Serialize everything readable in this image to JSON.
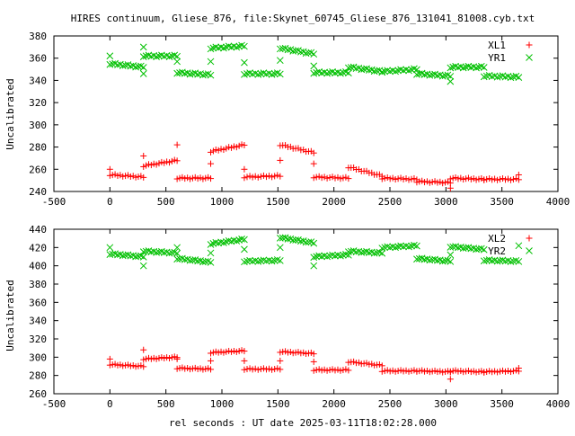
{
  "chart_data": {
    "title": "HIRES continuum, Gliese_876, file:Skynet_60745_Gliese_876_131041_81008.cyb.txt",
    "xlabel": "rel seconds : UT date 2025-03-11T18:02:28.000",
    "colors": {
      "red": "#ff0000",
      "green": "#00c000"
    },
    "panels": [
      {
        "type": "scatter",
        "ylabel": "Uncalibrated",
        "xlim": [
          -500,
          4000
        ],
        "ylim": [
          240,
          380
        ],
        "xticks": [
          "-500",
          "0",
          "500",
          "1000",
          "1500",
          "2000",
          "2500",
          "3000",
          "3500",
          "4000"
        ],
        "yticks": [
          "240",
          "260",
          "280",
          "300",
          "320",
          "340",
          "360",
          "380"
        ],
        "legend_position": "top-right",
        "series": [
          {
            "name": "XL1",
            "marker": "plus",
            "color": "#ff0000",
            "segments": [
              {
                "x": [
                  0,
                  300
                ],
                "y": [
                  255,
                  253
                ]
              },
              {
                "x": [
                  300,
                  600
                ],
                "y": [
                  263,
                  268
                ]
              },
              {
                "x": [
                  600,
                  900
                ],
                "y": [
                  252,
                  252
                ]
              },
              {
                "x": [
                  900,
                  1200
                ],
                "y": [
                  276,
                  282
                ]
              },
              {
                "x": [
                  1200,
                  1520
                ],
                "y": [
                  253,
                  254
                ]
              },
              {
                "x": [
                  1520,
                  1820
                ],
                "y": [
                  282,
                  275
                ]
              },
              {
                "x": [
                  1820,
                  2130
                ],
                "y": [
                  253,
                  252
                ]
              },
              {
                "x": [
                  2130,
                  2430
                ],
                "y": [
                  262,
                  254
                ]
              },
              {
                "x": [
                  2430,
                  2740
                ],
                "y": [
                  252,
                  251
                ]
              },
              {
                "x": [
                  2740,
                  3040
                ],
                "y": [
                  249,
                  248
                ]
              },
              {
                "x": [
                  3040,
                  3340
                ],
                "y": [
                  252,
                  251
                ]
              },
              {
                "x": [
                  3340,
                  3650
                ],
                "y": [
                  251,
                  251
                ]
              }
            ],
            "outliers": [
              {
                "x": 0,
                "y": 260
              },
              {
                "x": 300,
                "y": 272
              },
              {
                "x": 600,
                "y": 282
              },
              {
                "x": 900,
                "y": 265
              },
              {
                "x": 1200,
                "y": 260
              },
              {
                "x": 1520,
                "y": 268
              },
              {
                "x": 1820,
                "y": 265
              },
              {
                "x": 3040,
                "y": 243
              },
              {
                "x": 3650,
                "y": 255
              }
            ]
          },
          {
            "name": "YR1",
            "marker": "cross",
            "color": "#00c000",
            "segments": [
              {
                "x": [
                  0,
                  300
                ],
                "y": [
                  355,
                  352
                ]
              },
              {
                "x": [
                  300,
                  600
                ],
                "y": [
                  362,
                  362
                ]
              },
              {
                "x": [
                  600,
                  900
                ],
                "y": [
                  347,
                  345
                ]
              },
              {
                "x": [
                  900,
                  1200
                ],
                "y": [
                  369,
                  371
                ]
              },
              {
                "x": [
                  1200,
                  1520
                ],
                "y": [
                  346,
                  346
                ]
              },
              {
                "x": [
                  1520,
                  1820
                ],
                "y": [
                  369,
                  364
                ]
              },
              {
                "x": [
                  1820,
                  2130
                ],
                "y": [
                  347,
                  347
                ]
              },
              {
                "x": [
                  2130,
                  2430
                ],
                "y": [
                  352,
                  348
                ]
              },
              {
                "x": [
                  2430,
                  2740
                ],
                "y": [
                  348,
                  350
                ]
              },
              {
                "x": [
                  2740,
                  3040
                ],
                "y": [
                  346,
                  344
                ]
              },
              {
                "x": [
                  3040,
                  3340
                ],
                "y": [
                  352,
                  352
                ]
              },
              {
                "x": [
                  3340,
                  3650
                ],
                "y": [
                  344,
                  343
                ]
              }
            ],
            "outliers": [
              {
                "x": 0,
                "y": 362
              },
              {
                "x": 300,
                "y": 346
              },
              {
                "x": 300,
                "y": 370
              },
              {
                "x": 600,
                "y": 357
              },
              {
                "x": 900,
                "y": 357
              },
              {
                "x": 1200,
                "y": 356
              },
              {
                "x": 1520,
                "y": 358
              },
              {
                "x": 1820,
                "y": 353
              },
              {
                "x": 3040,
                "y": 339
              }
            ]
          }
        ]
      },
      {
        "type": "scatter",
        "ylabel": "Uncalibrated",
        "xlim": [
          -500,
          4000
        ],
        "ylim": [
          260,
          440
        ],
        "xticks": [
          "-500",
          "0",
          "500",
          "1000",
          "1500",
          "2000",
          "2500",
          "3000",
          "3500",
          "4000"
        ],
        "yticks": [
          "260",
          "280",
          "300",
          "320",
          "340",
          "360",
          "380",
          "400",
          "420",
          "440"
        ],
        "legend_position": "top-right",
        "series": [
          {
            "name": "XL2",
            "marker": "plus",
            "color": "#ff0000",
            "segments": [
              {
                "x": [
                  0,
                  300
                ],
                "y": [
                  292,
                  290
                ]
              },
              {
                "x": [
                  300,
                  600
                ],
                "y": [
                  298,
                  300
                ]
              },
              {
                "x": [
                  600,
                  900
                ],
                "y": [
                  288,
                  287
                ]
              },
              {
                "x": [
                  900,
                  1200
                ],
                "y": [
                  305,
                  307
                ]
              },
              {
                "x": [
                  1200,
                  1520
                ],
                "y": [
                  287,
                  287
                ]
              },
              {
                "x": [
                  1520,
                  1820
                ],
                "y": [
                  306,
                  304
                ]
              },
              {
                "x": [
                  1820,
                  2130
                ],
                "y": [
                  286,
                  286
                ]
              },
              {
                "x": [
                  2130,
                  2430
                ],
                "y": [
                  295,
                  291
                ]
              },
              {
                "x": [
                  2430,
                  2740
                ],
                "y": [
                  285,
                  285
                ]
              },
              {
                "x": [
                  2740,
                  3040
                ],
                "y": [
                  285,
                  284
                ]
              },
              {
                "x": [
                  3040,
                  3340
                ],
                "y": [
                  285,
                  284
                ]
              },
              {
                "x": [
                  3340,
                  3650
                ],
                "y": [
                  284,
                  285
                ]
              }
            ],
            "outliers": [
              {
                "x": 0,
                "y": 298
              },
              {
                "x": 300,
                "y": 308
              },
              {
                "x": 600,
                "y": 298
              },
              {
                "x": 900,
                "y": 296
              },
              {
                "x": 1200,
                "y": 296
              },
              {
                "x": 1520,
                "y": 296
              },
              {
                "x": 1820,
                "y": 295
              },
              {
                "x": 3040,
                "y": 276
              },
              {
                "x": 3650,
                "y": 288
              }
            ]
          },
          {
            "name": "YR2",
            "marker": "cross",
            "color": "#00c000",
            "segments": [
              {
                "x": [
                  0,
                  300
                ],
                "y": [
                  413,
                  410
                ]
              },
              {
                "x": [
                  300,
                  600
                ],
                "y": [
                  416,
                  414
                ]
              },
              {
                "x": [
                  600,
                  900
                ],
                "y": [
                  408,
                  404
                ]
              },
              {
                "x": [
                  900,
                  1200
                ],
                "y": [
                  424,
                  429
                ]
              },
              {
                "x": [
                  1200,
                  1520
                ],
                "y": [
                  405,
                  406
                ]
              },
              {
                "x": [
                  1520,
                  1820
                ],
                "y": [
                  431,
                  425
                ]
              },
              {
                "x": [
                  1820,
                  2130
                ],
                "y": [
                  410,
                  412
                ]
              },
              {
                "x": [
                  2130,
                  2430
                ],
                "y": [
                  416,
                  414
                ]
              },
              {
                "x": [
                  2430,
                  2740
                ],
                "y": [
                  420,
                  422
                ]
              },
              {
                "x": [
                  2740,
                  3040
                ],
                "y": [
                  408,
                  405
                ]
              },
              {
                "x": [
                  3040,
                  3340
                ],
                "y": [
                  421,
                  418
                ]
              },
              {
                "x": [
                  3340,
                  3650
                ],
                "y": [
                  406,
                  405
                ]
              }
            ],
            "outliers": [
              {
                "x": 0,
                "y": 420
              },
              {
                "x": 300,
                "y": 400
              },
              {
                "x": 600,
                "y": 420
              },
              {
                "x": 900,
                "y": 414
              },
              {
                "x": 1200,
                "y": 418
              },
              {
                "x": 1520,
                "y": 420
              },
              {
                "x": 1820,
                "y": 400
              },
              {
                "x": 3040,
                "y": 412
              },
              {
                "x": 3650,
                "y": 422
              }
            ]
          }
        ]
      }
    ]
  }
}
